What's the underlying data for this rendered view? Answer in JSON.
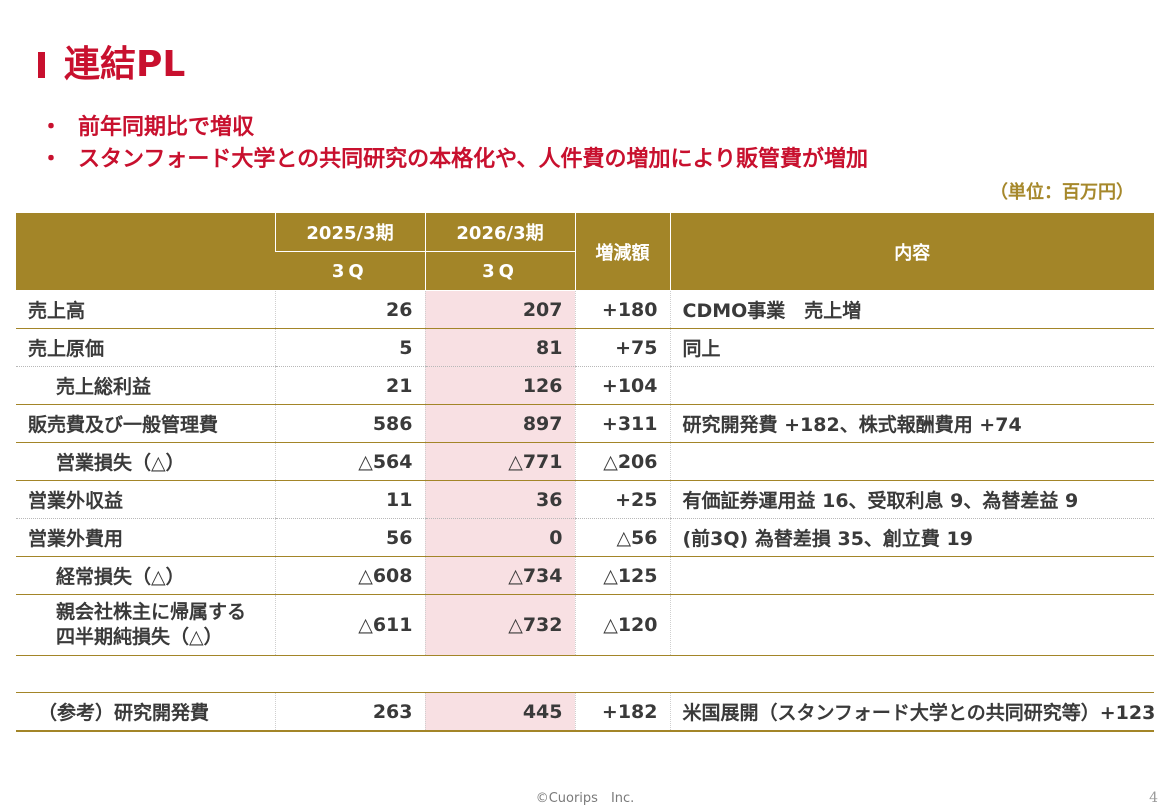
{
  "title": "連結PL",
  "bullets": [
    "前年同期比で増収",
    "スタンフォード大学との共同研究の本格化や、人件費の増加により販管費が増加"
  ],
  "unit": "（単位：百万円）",
  "table": {
    "headers": {
      "col1_top": "2025/3期",
      "col1_bottom": "3Q",
      "col2_top": "2026/3期",
      "col2_bottom": "3Q",
      "change": "増減額",
      "content": "内容"
    },
    "rows": [
      {
        "item": "売上高",
        "prev": "26",
        "curr": "207",
        "change": "+180",
        "note": "CDMO事業　売上増"
      },
      {
        "item": "売上原価",
        "prev": "5",
        "curr": "81",
        "change": "+75",
        "note": "同上"
      },
      {
        "item": "売上総利益",
        "prev": "21",
        "curr": "126",
        "change": "+104",
        "note": ""
      },
      {
        "item": "販売費及び一般管理費",
        "prev": "586",
        "curr": "897",
        "change": "+311",
        "note": "研究開発費 +182、株式報酬費用 +74"
      },
      {
        "item": "営業損失（△）",
        "prev": "△564",
        "curr": "△771",
        "change": "△206",
        "note": ""
      },
      {
        "item": "営業外収益",
        "prev": "11",
        "curr": "36",
        "change": "+25",
        "note": "有価証券運用益 16、受取利息 9、為替差益 9"
      },
      {
        "item": "営業外費用",
        "prev": "56",
        "curr": "0",
        "change": "△56",
        "note": "(前3Q) 為替差損 35、創立費 19"
      },
      {
        "item": "経常損失（△）",
        "prev": "△608",
        "curr": "△734",
        "change": "△125",
        "note": ""
      },
      {
        "item_line1": "親会社株主に帰属する",
        "item_line2": "四半期純損失（△）",
        "prev": "△611",
        "curr": "△732",
        "change": "△120",
        "note": ""
      }
    ],
    "reference": {
      "item": "（参考）研究開発費",
      "prev": "263",
      "curr": "445",
      "change": "+182",
      "note": "米国展開（スタンフォード大学との共同研究等）+123"
    }
  },
  "footer": "©Cuorips　Inc.",
  "page_number": "4",
  "colors": {
    "accent_red": "#c8102e",
    "header_gold": "#a38528",
    "highlight_pink": "#f8e0e3"
  }
}
